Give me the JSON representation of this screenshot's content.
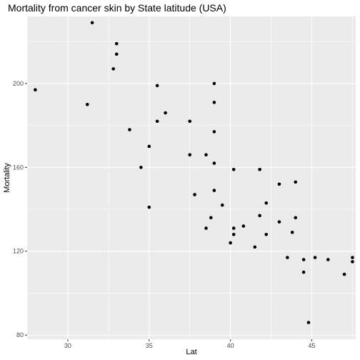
{
  "chart_data": {
    "type": "scatter",
    "title": "Mortality from cancer skin by State latitude (USA)",
    "xlabel": "Lat",
    "ylabel": "Mortality",
    "xlim": [
      27.5,
      47.7
    ],
    "ylim": [
      78,
      232
    ],
    "x_ticks": [
      30,
      35,
      40,
      45
    ],
    "y_ticks": [
      80,
      120,
      160,
      200
    ],
    "grid": true,
    "legend": "none",
    "colors": {
      "panel": "#ebebeb",
      "grid_major": "#ffffff",
      "point": "#000000",
      "tick_text": "#4d4d4d"
    },
    "points": [
      [
        28.0,
        197
      ],
      [
        31.2,
        190
      ],
      [
        31.5,
        229
      ],
      [
        32.8,
        207
      ],
      [
        33.0,
        219
      ],
      [
        33.0,
        214
      ],
      [
        33.8,
        178
      ],
      [
        34.5,
        160
      ],
      [
        35.0,
        170
      ],
      [
        35.0,
        141
      ],
      [
        35.5,
        199
      ],
      [
        35.5,
        182
      ],
      [
        36.0,
        186
      ],
      [
        37.5,
        182
      ],
      [
        37.5,
        166
      ],
      [
        37.8,
        147
      ],
      [
        38.5,
        166
      ],
      [
        38.5,
        131
      ],
      [
        38.8,
        136
      ],
      [
        39.0,
        200
      ],
      [
        39.0,
        191
      ],
      [
        39.0,
        177
      ],
      [
        39.0,
        162
      ],
      [
        39.0,
        149
      ],
      [
        39.5,
        142
      ],
      [
        40.0,
        124
      ],
      [
        40.2,
        159
      ],
      [
        40.2,
        131
      ],
      [
        40.2,
        128
      ],
      [
        40.8,
        132
      ],
      [
        41.5,
        122
      ],
      [
        41.8,
        159
      ],
      [
        41.8,
        137
      ],
      [
        42.2,
        143
      ],
      [
        42.2,
        128
      ],
      [
        43.0,
        152
      ],
      [
        43.0,
        134
      ],
      [
        43.5,
        117
      ],
      [
        43.8,
        129
      ],
      [
        44.0,
        153
      ],
      [
        44.0,
        136
      ],
      [
        44.5,
        116
      ],
      [
        44.5,
        110
      ],
      [
        44.8,
        86
      ],
      [
        45.2,
        117
      ],
      [
        46.0,
        116
      ],
      [
        47.0,
        109
      ],
      [
        47.5,
        117
      ],
      [
        47.5,
        115
      ]
    ]
  }
}
